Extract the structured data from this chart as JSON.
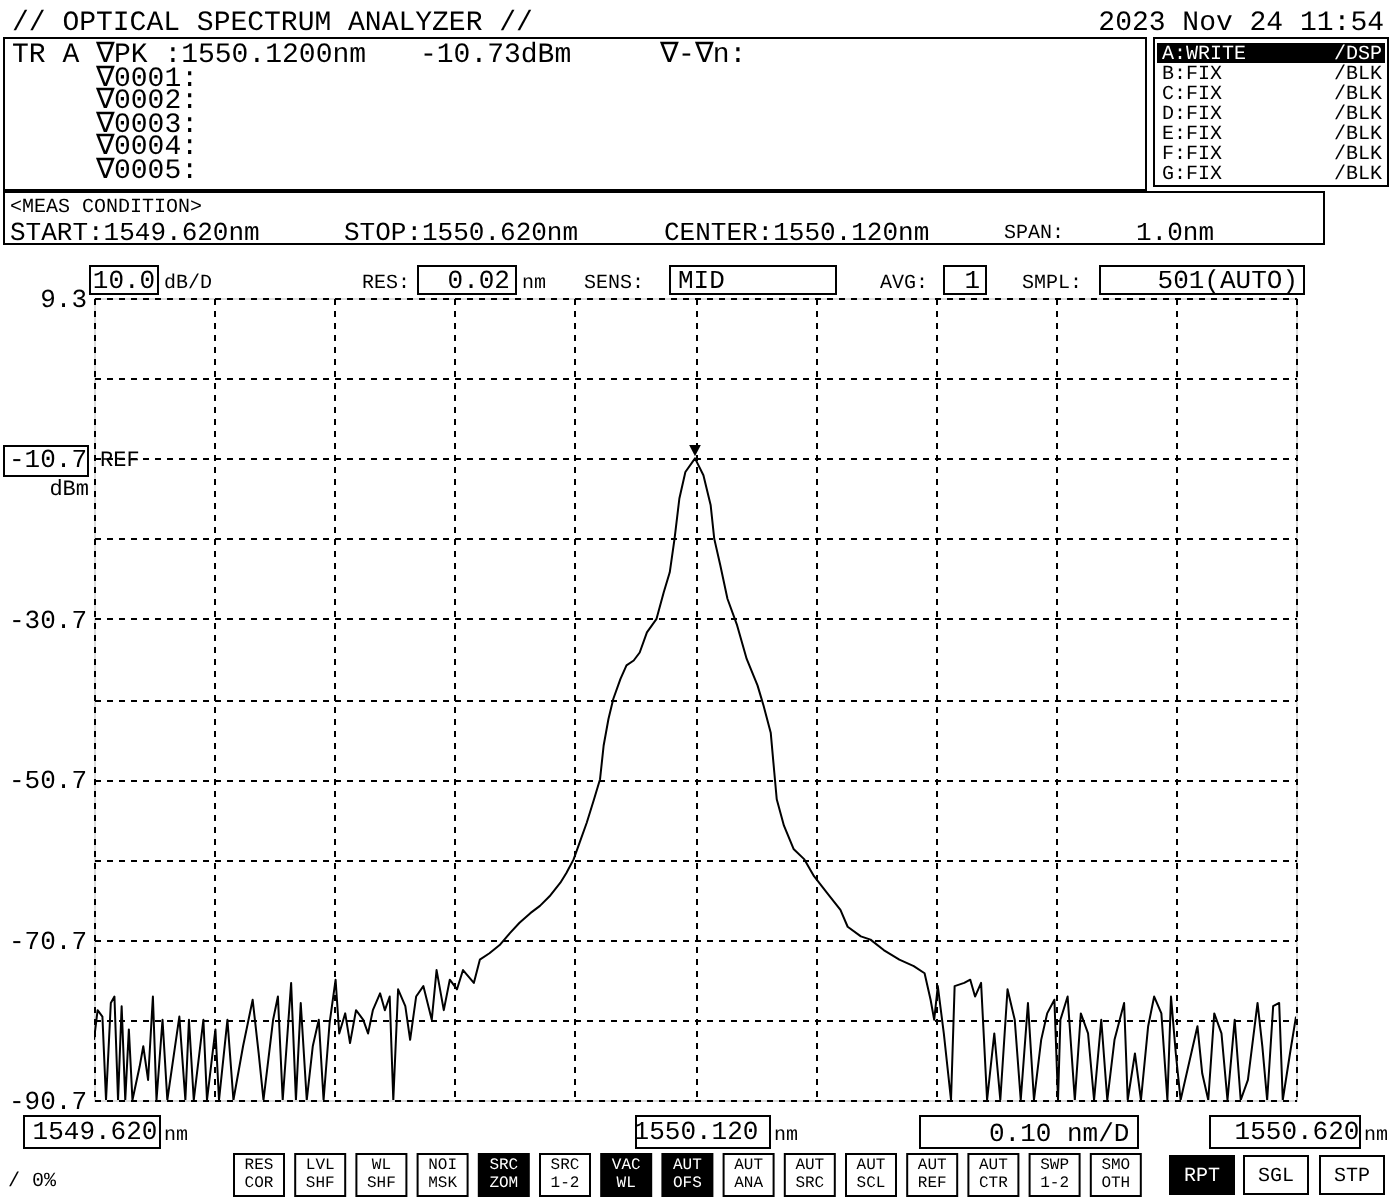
{
  "chart_data": {
    "type": "line",
    "title": "// OPTICAL SPECTRUM ANALYZER //",
    "xlabel": "0.10 nm/D",
    "ylabel": "dBm",
    "x": [
      1549.62,
      1549.623,
      1549.627,
      1549.63,
      1549.634,
      1549.637,
      1549.64,
      1549.643,
      1549.646,
      1549.649,
      1549.652,
      1549.658,
      1549.661,
      1549.665,
      1549.669,
      1549.672,
      1549.677,
      1549.681,
      1549.691,
      1549.696,
      1549.699,
      1549.703,
      1549.711,
      1549.714,
      1549.721,
      1549.724,
      1549.731,
      1549.736,
      1549.744,
      1549.748,
      1549.752,
      1549.757,
      1549.761,
      1549.769,
      1549.773,
      1549.777,
      1549.784,
      1549.788,
      1549.792,
      1549.797,
      1549.802,
      1549.807,
      1549.811,
      1549.816,
      1549.821,
      1549.824,
      1549.829,
      1549.833,
      1549.838,
      1549.844,
      1549.848,
      1549.852,
      1549.858,
      1549.862,
      1549.866,
      1549.869,
      1549.873,
      1549.879,
      1549.883,
      1549.888,
      1549.894,
      1549.901,
      1549.905,
      1549.911,
      1549.916,
      1549.922,
      1549.927,
      1549.936,
      1549.941,
      1549.949,
      1549.958,
      1549.966,
      1549.974,
      1549.983,
      1549.991,
      1549.999,
      1550.008,
      1550.013,
      1550.019,
      1550.024,
      1550.03,
      1550.036,
      1550.041,
      1550.044,
      1550.048,
      1550.052,
      1550.058,
      1550.063,
      1550.069,
      1550.074,
      1550.08,
      1550.088,
      1550.094,
      1550.099,
      1550.103,
      1550.107,
      1550.112,
      1550.12,
      1550.127,
      1550.133,
      1550.136,
      1550.141,
      1550.147,
      1550.155,
      1550.163,
      1550.172,
      1550.177,
      1550.183,
      1550.186,
      1550.188,
      1550.194,
      1550.202,
      1550.211,
      1550.219,
      1550.23,
      1550.241,
      1550.247,
      1550.258,
      1550.266,
      1550.277,
      1550.29,
      1550.302,
      1550.311,
      1550.316,
      1550.319,
      1550.322,
      1550.327,
      1550.333,
      1550.336,
      1550.344,
      1550.349,
      1550.353,
      1550.358,
      1550.363,
      1550.369,
      1550.374,
      1550.38,
      1550.386,
      1550.391,
      1550.397,
      1550.402,
      1550.408,
      1550.413,
      1550.419,
      1550.422,
      1550.424,
      1550.43,
      1550.436,
      1550.441,
      1550.447,
      1550.452,
      1550.458,
      1550.463,
      1550.469,
      1550.477,
      1550.48,
      1550.486,
      1550.491,
      1550.497,
      1550.502,
      1550.508,
      1550.513,
      1550.516,
      1550.52,
      1550.524,
      1550.538,
      1550.542,
      1550.547,
      1550.552,
      1550.558,
      1550.563,
      1550.569,
      1550.574,
      1550.58,
      1550.588,
      1550.592,
      1550.596,
      1550.601,
      1550.606,
      1550.609,
      1550.615,
      1550.62
    ],
    "series": [
      {
        "color": "#000000",
        "values": [
          -83.2,
          -79.5,
          -80.3,
          -90.7,
          -78.6,
          -77.8,
          -90.7,
          -79.0,
          -90.7,
          -81.9,
          -90.7,
          -86.5,
          -84.0,
          -88.2,
          -77.8,
          -90.7,
          -80.7,
          -90.7,
          -80.3,
          -90.7,
          -80.7,
          -90.7,
          -80.7,
          -90.7,
          -81.9,
          -90.7,
          -80.7,
          -90.7,
          -84.0,
          -81.1,
          -78.2,
          -84.9,
          -90.7,
          -80.7,
          -77.8,
          -90.7,
          -76.1,
          -90.7,
          -78.6,
          -90.7,
          -84.0,
          -80.7,
          -90.7,
          -81.1,
          -75.7,
          -82.4,
          -79.9,
          -83.6,
          -79.5,
          -80.7,
          -82.4,
          -79.5,
          -77.4,
          -79.5,
          -77.8,
          -90.7,
          -76.9,
          -79.0,
          -83.2,
          -77.8,
          -76.5,
          -80.7,
          -74.5,
          -79.5,
          -75.7,
          -76.9,
          -74.5,
          -76.1,
          -73.2,
          -72.4,
          -71.3,
          -69.9,
          -68.6,
          -67.4,
          -66.5,
          -65.3,
          -63.6,
          -62.4,
          -60.7,
          -58.6,
          -56.1,
          -53.2,
          -50.7,
          -46.5,
          -43.2,
          -40.7,
          -38.2,
          -36.5,
          -35.9,
          -34.9,
          -32.4,
          -30.7,
          -27.4,
          -24.9,
          -20.7,
          -15.7,
          -12.4,
          -10.7,
          -12.8,
          -16.5,
          -20.7,
          -24.0,
          -28.2,
          -31.5,
          -35.7,
          -39.0,
          -41.5,
          -44.9,
          -49.9,
          -53.2,
          -56.5,
          -59.4,
          -60.7,
          -62.8,
          -64.9,
          -67.0,
          -69.1,
          -70.3,
          -70.7,
          -72.0,
          -73.2,
          -74.0,
          -74.9,
          -78.2,
          -80.7,
          -76.5,
          -82.4,
          -90.7,
          -76.5,
          -76.1,
          -75.7,
          -77.8,
          -76.1,
          -90.7,
          -82.4,
          -90.7,
          -76.9,
          -80.7,
          -90.7,
          -78.6,
          -90.7,
          -83.2,
          -79.9,
          -78.2,
          -90.7,
          -80.7,
          -77.8,
          -90.7,
          -79.9,
          -82.4,
          -90.7,
          -80.7,
          -90.7,
          -83.2,
          -78.6,
          -90.7,
          -84.9,
          -90.7,
          -81.5,
          -77.8,
          -79.9,
          -90.7,
          -77.8,
          -84.9,
          -90.7,
          -81.5,
          -87.4,
          -90.7,
          -79.9,
          -82.4,
          -90.7,
          -80.7,
          -90.7,
          -88.2,
          -78.6,
          -84.0,
          -90.7,
          -79.0,
          -78.6,
          -90.7,
          -84.9,
          -80.3
        ]
      }
    ],
    "xlim": [
      1549.62,
      1550.62
    ],
    "xticks": [
      {
        "value": 1549.62,
        "label": "1549.620"
      },
      {
        "value": 1549.72,
        "label": null
      },
      {
        "value": 1549.82,
        "label": null
      },
      {
        "value": 1549.92,
        "label": null
      },
      {
        "value": 1550.02,
        "label": null
      },
      {
        "value": 1550.12,
        "label": "1550.120"
      },
      {
        "value": 1550.22,
        "label": null
      },
      {
        "value": 1550.32,
        "label": null
      },
      {
        "value": 1550.42,
        "label": null
      },
      {
        "value": 1550.52,
        "label": null
      },
      {
        "value": 1550.62,
        "label": "1550.620"
      }
    ],
    "ylim": [
      -90.7,
      9.3
    ],
    "yticks": [
      9.3,
      {
        "value": -0.7,
        "label": null
      },
      -10.7,
      {
        "value": -20.7,
        "label": null
      },
      -30.7,
      {
        "value": -40.7,
        "label": null
      },
      -50.7,
      {
        "value": -60.7,
        "label": null
      },
      -70.7,
      {
        "value": -80.7,
        "label": null
      },
      -90.7
    ],
    "grid": true,
    "line_style": "solid",
    "annotations": [
      "2023 Nov 24 11:54",
      "TR A",
      "∇PK :1550.1200nm",
      "-10.73dBm",
      "∇-∇n:",
      "∇0001:",
      "∇0002:",
      "∇0003:",
      "∇0004:",
      "∇0005:",
      "A:WRITE",
      "/DSP",
      "B:FIX",
      "/BLK",
      "C:FIX",
      "/BLK",
      "D:FIX",
      "/BLK",
      "E:FIX",
      "/BLK",
      "F:FIX",
      "/BLK",
      "G:FIX",
      "/BLK",
      "<MEAS CONDITION>",
      "START:1549.620nm",
      "STOP:1550.620nm",
      "CENTER:1550.120nm",
      "SPAN:",
      "1.0nm",
      "10.0",
      "dB/D",
      "RES:",
      "0.02",
      "nm",
      "SENS:",
      "MID",
      "AVG:",
      "1",
      "SMPL:",
      "501(AUTO)",
      "nm",
      "nm",
      "nm",
      "/ 0%",
      "RES COR",
      "LVL SHF",
      "WL SHF",
      "NOI MSK",
      "SRC ZOM",
      "SRC 1-2",
      "VAC WL",
      "AUT OFS",
      "AUT ANA",
      "AUT SRC",
      "AUT SCL",
      "AUT REF",
      "AUT CTR",
      "SWP 1-2",
      "SMO OTH",
      "RPT",
      "SGL",
      "STP",
      "REF",
      {
        "text": "▼",
        "x": 1550.12,
        "y": -10.7
      }
    ]
  }
}
